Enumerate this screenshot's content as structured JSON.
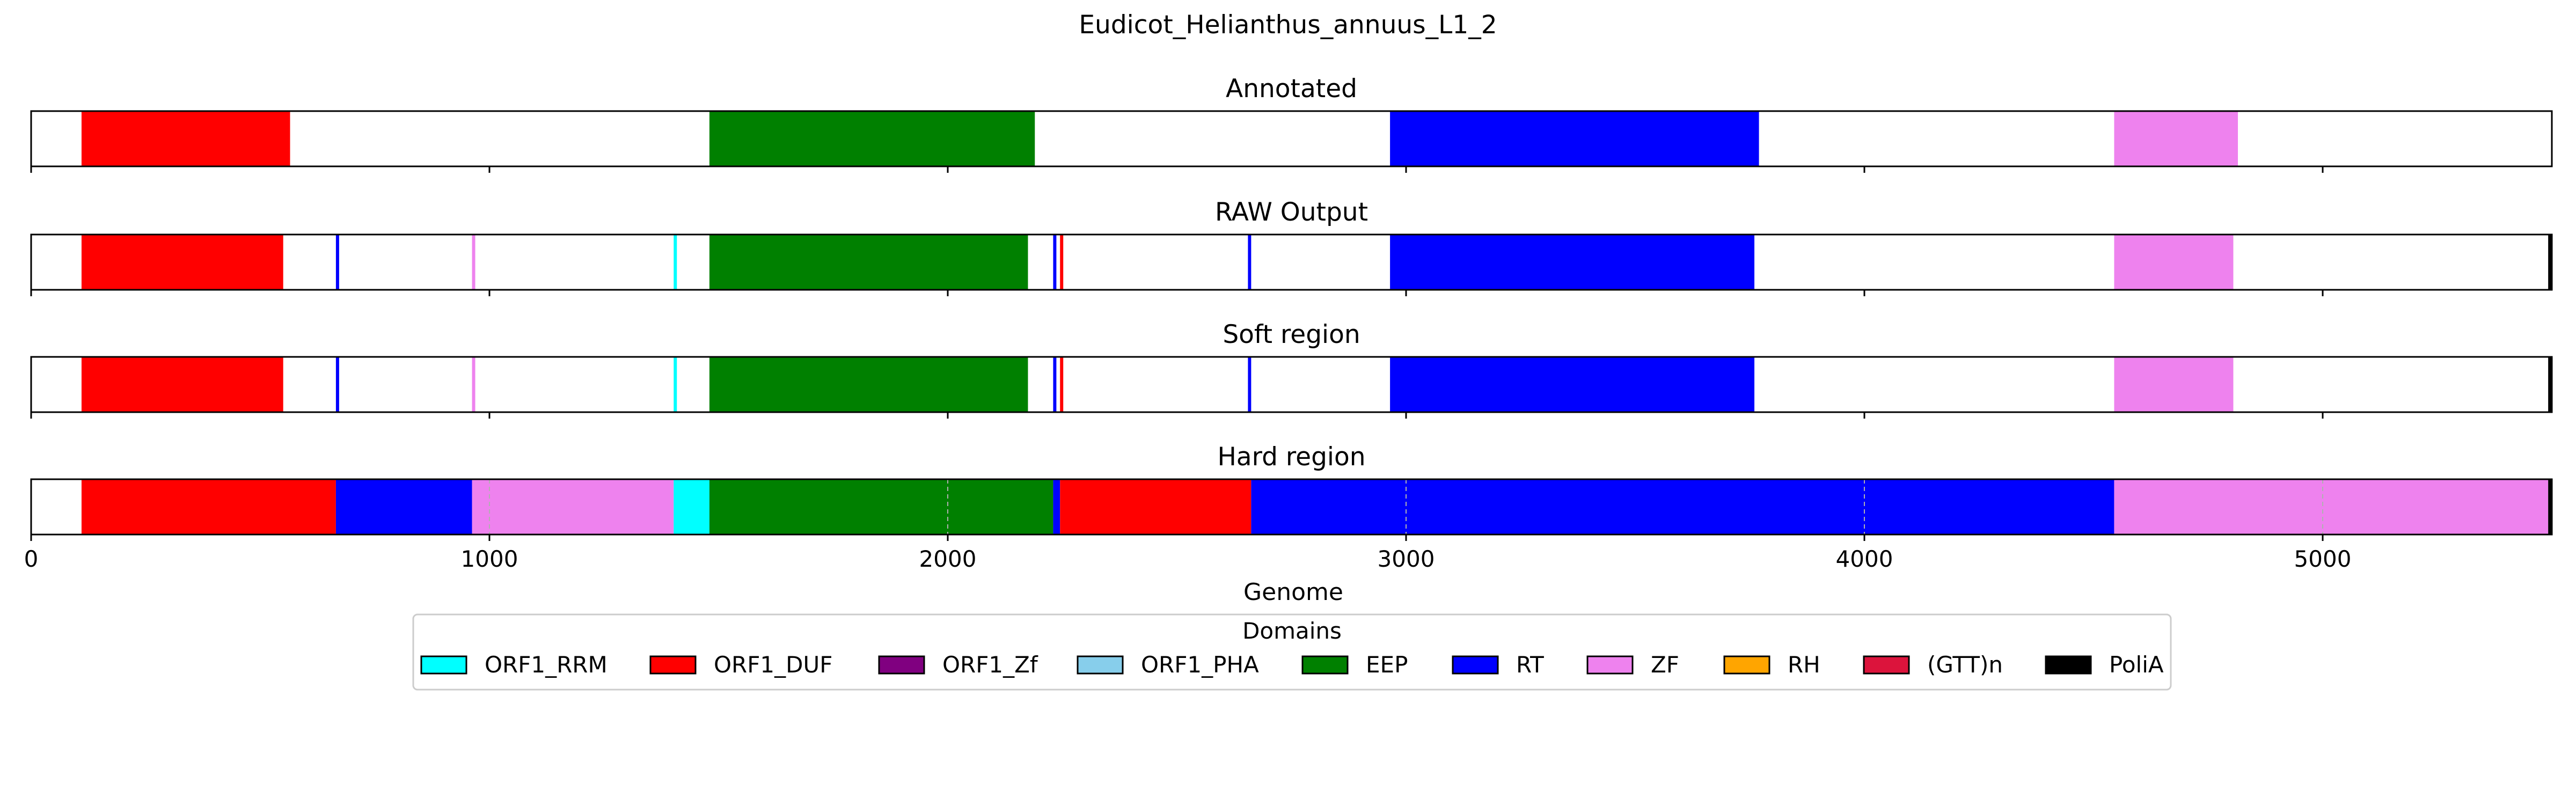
{
  "chart_data": {
    "type": "bar",
    "subtype": "horizontal-segment-tracks",
    "title": "Eudicot_Helianthus_annuus_L1_2",
    "xlabel": "Genome",
    "xlim": [
      0,
      5500
    ],
    "xticks": [
      0,
      1000,
      2000,
      3000,
      4000,
      5000
    ],
    "legend": {
      "title": "Domains",
      "placement": "bottom-center",
      "entries": [
        {
          "name": "ORF1_RRM",
          "color": "#00ffff"
        },
        {
          "name": "ORF1_DUF",
          "color": "#ff0000"
        },
        {
          "name": "ORF1_Zf",
          "color": "#800080"
        },
        {
          "name": "ORF1_PHA",
          "color": "#87ceeb"
        },
        {
          "name": "EEP",
          "color": "#008000"
        },
        {
          "name": "RT",
          "color": "#0000ff"
        },
        {
          "name": "ZF",
          "color": "#ee82ee"
        },
        {
          "name": "RH",
          "color": "#ffa500"
        },
        {
          "name": "(GTT)n",
          "color": "#dc143c"
        },
        {
          "name": "PoliA",
          "color": "#000000"
        }
      ]
    },
    "tracks": [
      {
        "title": "Annotated",
        "grid": false,
        "segments": [
          {
            "domain": "ORF1_DUF",
            "start": 110,
            "end": 565
          },
          {
            "domain": "EEP",
            "start": 1480,
            "end": 2190
          },
          {
            "domain": "RT",
            "start": 2965,
            "end": 3770
          },
          {
            "domain": "ZF",
            "start": 4545,
            "end": 4815
          }
        ]
      },
      {
        "title": "RAW Output",
        "grid": false,
        "segments": [
          {
            "domain": "ORF1_DUF",
            "start": 110,
            "end": 550
          },
          {
            "domain": "RT",
            "start": 665,
            "end": 672
          },
          {
            "domain": "ZF",
            "start": 962,
            "end": 969
          },
          {
            "domain": "ORF1_RRM",
            "start": 1402,
            "end": 1409
          },
          {
            "domain": "EEP",
            "start": 1480,
            "end": 2175
          },
          {
            "domain": "RT",
            "start": 2230,
            "end": 2237
          },
          {
            "domain": "ORF1_DUF",
            "start": 2245,
            "end": 2252
          },
          {
            "domain": "RT",
            "start": 2655,
            "end": 2662
          },
          {
            "domain": "RT",
            "start": 2965,
            "end": 3760
          },
          {
            "domain": "ZF",
            "start": 4545,
            "end": 4805
          },
          {
            "domain": "PoliA",
            "start": 5492,
            "end": 5500
          }
        ]
      },
      {
        "title": "Soft region",
        "grid": false,
        "segments": [
          {
            "domain": "ORF1_DUF",
            "start": 110,
            "end": 550
          },
          {
            "domain": "RT",
            "start": 665,
            "end": 672
          },
          {
            "domain": "ZF",
            "start": 962,
            "end": 969
          },
          {
            "domain": "ORF1_RRM",
            "start": 1402,
            "end": 1409
          },
          {
            "domain": "EEP",
            "start": 1480,
            "end": 2175
          },
          {
            "domain": "RT",
            "start": 2230,
            "end": 2237
          },
          {
            "domain": "ORF1_DUF",
            "start": 2245,
            "end": 2252
          },
          {
            "domain": "RT",
            "start": 2655,
            "end": 2662
          },
          {
            "domain": "RT",
            "start": 2965,
            "end": 3760
          },
          {
            "domain": "ZF",
            "start": 4545,
            "end": 4805
          },
          {
            "domain": "PoliA",
            "start": 5492,
            "end": 5500
          }
        ]
      },
      {
        "title": "Hard region",
        "grid": true,
        "segments": [
          {
            "domain": "ORF1_DUF",
            "start": 110,
            "end": 665
          },
          {
            "domain": "RT",
            "start": 665,
            "end": 962
          },
          {
            "domain": "ZF",
            "start": 962,
            "end": 1402
          },
          {
            "domain": "ORF1_RRM",
            "start": 1402,
            "end": 1480
          },
          {
            "domain": "EEP",
            "start": 1480,
            "end": 2230
          },
          {
            "domain": "RT",
            "start": 2230,
            "end": 2245
          },
          {
            "domain": "ORF1_DUF",
            "start": 2245,
            "end": 2662
          },
          {
            "domain": "RT",
            "start": 2662,
            "end": 4545
          },
          {
            "domain": "ZF",
            "start": 4545,
            "end": 5492
          },
          {
            "domain": "PoliA",
            "start": 5492,
            "end": 5500
          }
        ]
      }
    ]
  }
}
